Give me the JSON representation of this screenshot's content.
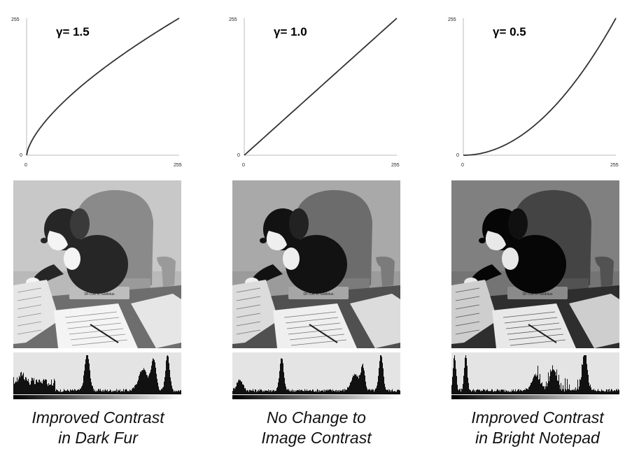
{
  "panels": [
    {
      "gamma_label": "γ= 1.5",
      "gamma": 1.5,
      "axis": {
        "x_min": "0",
        "x_max": "255",
        "y_min": "0",
        "y_max": "255"
      },
      "tone": "brightened",
      "caption": [
        "Improved Contrast",
        "in Dark Fur"
      ]
    },
    {
      "gamma_label": "γ= 1.0",
      "gamma": 1.0,
      "axis": {
        "x_min": "0",
        "x_max": "255",
        "y_min": "0",
        "y_max": "255"
      },
      "tone": "original",
      "caption": [
        "No Change to",
        "Image Contrast"
      ]
    },
    {
      "gamma_label": "γ= 0.5",
      "gamma": 0.5,
      "axis": {
        "x_min": "0",
        "x_max": "255",
        "y_min": "0",
        "y_max": "255"
      },
      "tone": "darkened",
      "caption": [
        "Improved Contrast",
        "in Bright Notepad"
      ]
    }
  ],
  "nameplate_text": "DFTOK K. Godstus",
  "colors": {
    "curve": "#333333",
    "hist_bar": "#111111",
    "hist_bg": "#e4e4e4"
  }
}
